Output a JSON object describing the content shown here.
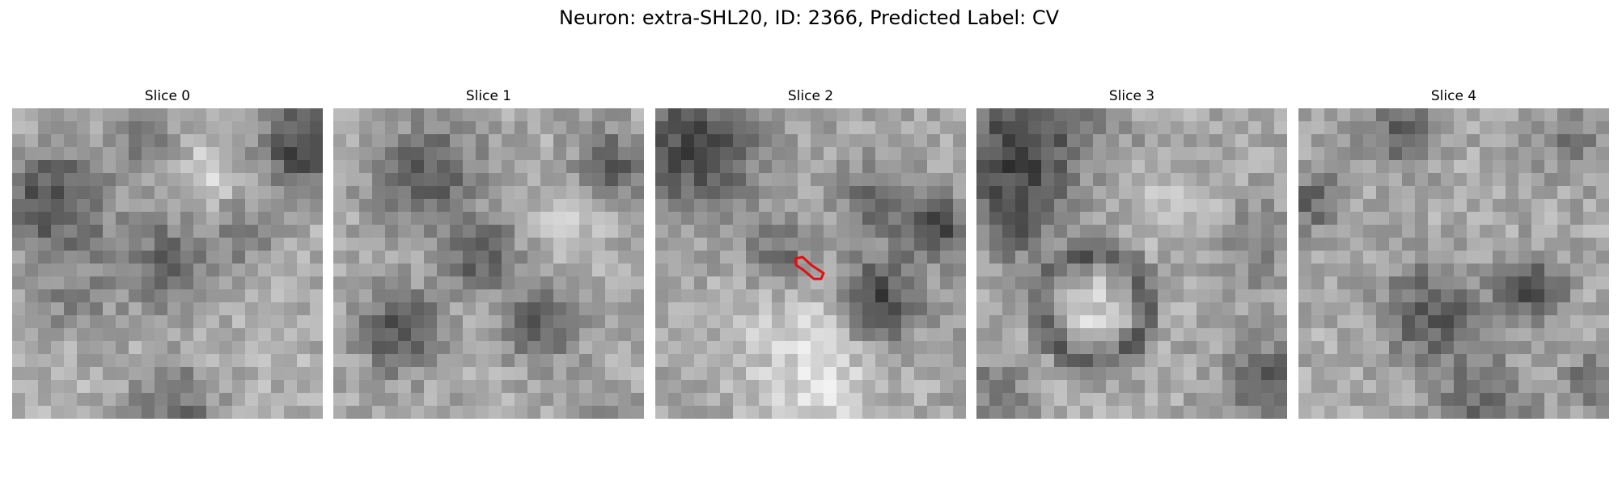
{
  "figure": {
    "title": "Neuron: extra-SHL20, ID: 2366, Predicted Label: CV"
  },
  "panels": [
    {
      "title": "Slice 0"
    },
    {
      "title": "Slice 1"
    },
    {
      "title": "Slice 2"
    },
    {
      "title": "Slice 3"
    },
    {
      "title": "Slice 4"
    }
  ],
  "colors": {
    "background": "#ffffff",
    "roi_outline": "#e01010",
    "text": "#000000"
  },
  "colormap": "grayscale"
}
